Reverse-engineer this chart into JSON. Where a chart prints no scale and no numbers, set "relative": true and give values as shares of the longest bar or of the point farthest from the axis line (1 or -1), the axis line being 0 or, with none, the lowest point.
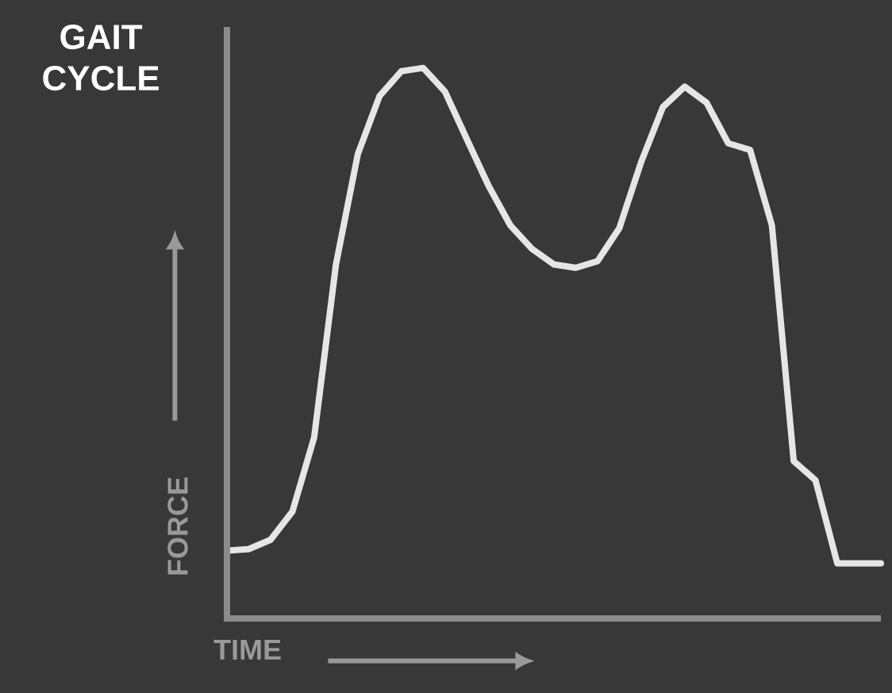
{
  "chart_data": {
    "type": "line",
    "title": "GAIT CYCLE",
    "xlabel": "TIME",
    "ylabel": "FORCE",
    "relative": true,
    "color": "#e6e6e6",
    "categories": [
      null,
      null,
      null,
      null,
      null,
      null,
      null,
      null,
      null,
      null,
      null,
      null,
      null,
      null,
      null,
      null,
      null,
      null,
      null,
      null,
      null,
      null,
      null,
      null,
      null,
      null,
      null,
      null,
      null,
      null,
      null
    ],
    "values": [
      0.123,
      0.126,
      0.143,
      0.194,
      0.329,
      0.643,
      0.843,
      0.949,
      0.994,
      1.0,
      0.957,
      0.871,
      0.786,
      0.714,
      0.671,
      0.643,
      0.637,
      0.649,
      0.709,
      0.829,
      0.929,
      0.966,
      0.937,
      0.863,
      0.851,
      0.714,
      0.286,
      0.251,
      0.1,
      0.1,
      0.1
    ],
    "marker": "none",
    "line_style": "solid"
  }
}
